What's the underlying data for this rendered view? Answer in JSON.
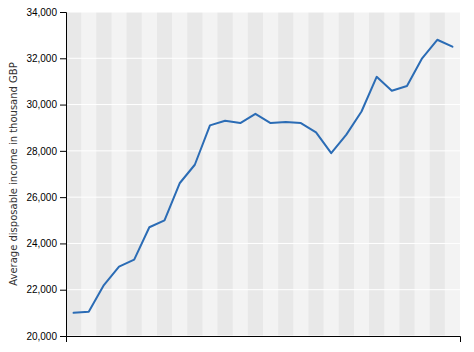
{
  "chart_data": {
    "type": "line",
    "y_label": "Average disposable income in thousand GBP",
    "x": [
      1,
      2,
      3,
      4,
      5,
      6,
      7,
      8,
      9,
      10,
      11,
      12,
      13,
      14,
      15,
      16,
      17,
      18,
      19,
      20,
      21,
      22,
      23,
      24,
      25,
      26
    ],
    "values": [
      21000,
      21050,
      22200,
      23000,
      23300,
      24700,
      25000,
      26600,
      27400,
      29100,
      29300,
      29200,
      29600,
      29200,
      29250,
      29200,
      28800,
      27900,
      28700,
      29700,
      31200,
      30600,
      30800,
      32000,
      32800,
      32500
    ],
    "color": "#2b6cb5",
    "xlim": [
      0.5,
      26.5
    ],
    "ylim": [
      20000,
      34000
    ],
    "yticks": [
      {
        "value": 20000,
        "label": "20,000"
      },
      {
        "value": 22000,
        "label": "22,000"
      },
      {
        "value": 24000,
        "label": "24,000"
      },
      {
        "value": 26000,
        "label": "26,000"
      },
      {
        "value": 28000,
        "label": "28,000"
      },
      {
        "value": 30000,
        "label": "30,000"
      },
      {
        "value": 32000,
        "label": "32,000"
      },
      {
        "value": 34000,
        "label": "34,000"
      }
    ],
    "grid": true,
    "tick_labels": "y"
  }
}
